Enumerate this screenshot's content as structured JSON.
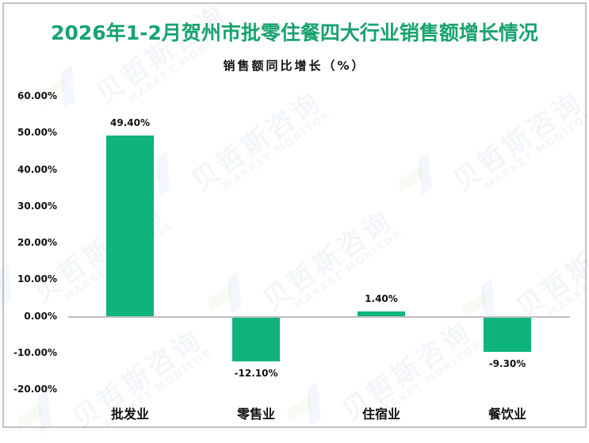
{
  "chart_data": {
    "type": "bar",
    "title": "2026年1-2月贺州市批零住餐四大行业销售额增长情况",
    "subtitle": "销售额同比增长（%）",
    "categories": [
      "批发业",
      "零售业",
      "住宿业",
      "餐饮业"
    ],
    "values": [
      49.4,
      -12.1,
      1.4,
      -9.3
    ],
    "value_labels": [
      "49.40%",
      "-12.10%",
      "1.40%",
      "-9.30%"
    ],
    "xlabel": "",
    "ylabel": "",
    "ylim": [
      -20,
      60
    ],
    "yticks": [
      "60.00%",
      "50.00%",
      "40.00%",
      "30.00%",
      "20.00%",
      "10.00%",
      "0.00%",
      "-10.00%",
      "-20.00%"
    ],
    "ytick_values": [
      60,
      50,
      40,
      30,
      20,
      10,
      0,
      -10,
      -20
    ],
    "grid": false,
    "legend": null,
    "bar_color": "#0fb37d",
    "title_color": "#18a36e"
  },
  "watermark": {
    "cn": "贝哲斯咨询",
    "en": "MARKET MONITOR"
  }
}
